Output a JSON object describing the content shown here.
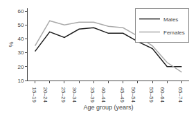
{
  "chart_data": {
    "type": "line",
    "xlabel": "Age group (years)",
    "ylabel": "%",
    "categories": [
      "15–19",
      "20–24",
      "25–29",
      "30–34",
      "35–39",
      "40–44",
      "45–49",
      "50–54",
      "55–59",
      "60–64",
      "65–74"
    ],
    "series": [
      {
        "name": "Males",
        "color": "#1a1a1a",
        "values": [
          31,
          45,
          41,
          47,
          48,
          44,
          44,
          38,
          33,
          20,
          20
        ]
      },
      {
        "name": "Females",
        "color": "#aaaaaa",
        "values": [
          35,
          53,
          50,
          52,
          52,
          49,
          48,
          42,
          35,
          23,
          16
        ]
      }
    ],
    "ylim": [
      10,
      62
    ],
    "yticks": [
      10,
      20,
      30,
      40,
      50,
      60
    ],
    "grid": false,
    "legend": "upper right"
  }
}
